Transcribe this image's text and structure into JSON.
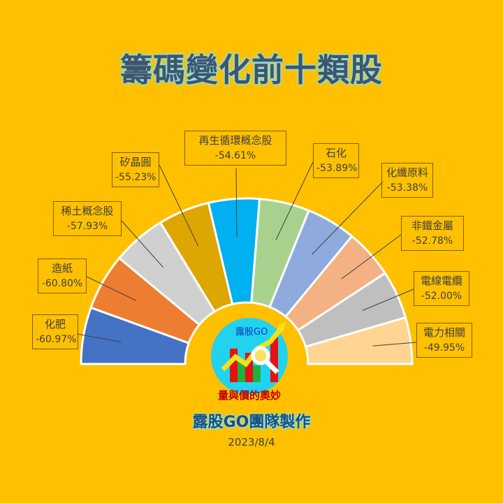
{
  "title": "籌碼變化前十類股",
  "credit": "露股GO團隊製作",
  "date": "2023/8/4",
  "logo": {
    "brand": "露股GO",
    "slogan": "量與價的奧妙"
  },
  "chart_data": {
    "type": "pie",
    "subtype": "half-doughnut",
    "title": "籌碼變化前十類股",
    "categories": [
      "化肥",
      "造紙",
      "稀土概念股",
      "矽晶圓",
      "再生循環概念股",
      "石化",
      "化纖原料",
      "非鐵金屬",
      "電線電纜",
      "電力相關"
    ],
    "values": [
      -60.97,
      -60.8,
      -57.93,
      -55.23,
      -54.61,
      -53.89,
      -53.38,
      -52.78,
      -52.0,
      -49.95
    ],
    "value_labels": [
      "-60.97%",
      "-60.80%",
      "-57.93%",
      "-55.23%",
      "-54.61%",
      "-53.89%",
      "-53.38%",
      "-52.78%",
      "-52.00%",
      "-49.95%"
    ],
    "colors": [
      "#4472C4",
      "#ED7D31",
      "#D0D0D0",
      "#DDA600",
      "#00B0F0",
      "#A9D18E",
      "#8FAADC",
      "#F4B183",
      "#BFBFBF",
      "#FFD591"
    ],
    "legend": "none (callout data labels)"
  }
}
